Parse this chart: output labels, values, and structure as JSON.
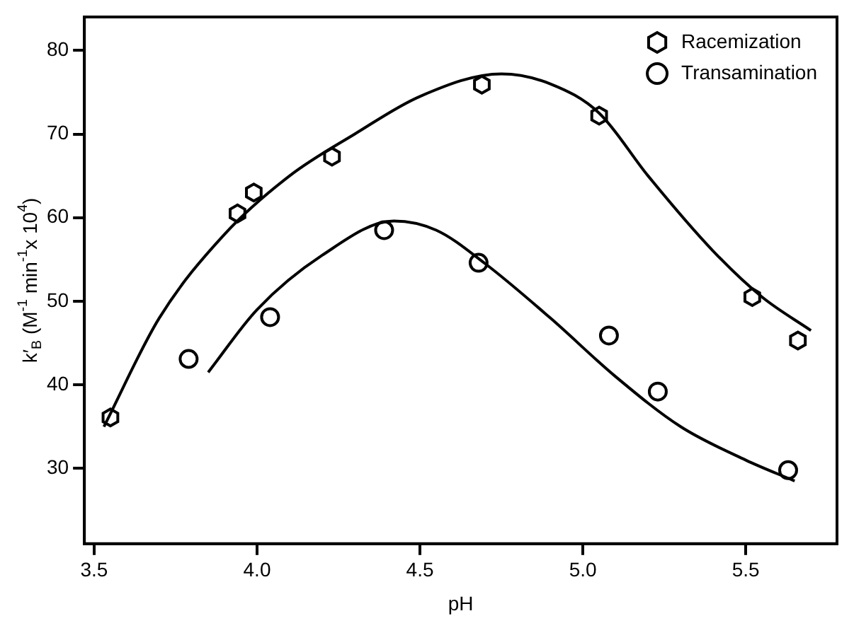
{
  "chart_data": {
    "type": "scatter",
    "xlabel": "pH",
    "ylabel": "k′$_{B}$ (M$^{-1}$ min$^{-1}$x 10$^{4}$)",
    "xlim": [
      3.47,
      5.78
    ],
    "ylim": [
      21,
      84
    ],
    "xticks": [
      {
        "value": 3.5,
        "label": "3.5"
      },
      {
        "value": 4,
        "label": "4.0"
      },
      {
        "value": 4.5,
        "label": "4.5"
      },
      {
        "value": 5,
        "label": "5.0"
      },
      {
        "value": 5.5,
        "label": "5.5"
      }
    ],
    "yticks": [
      30,
      40,
      50,
      60,
      70,
      80
    ],
    "grid": false,
    "legend": "top right",
    "series": [
      {
        "name": "Racemization",
        "color": "#000000",
        "x": [
          3.55,
          3.94,
          3.99,
          4.23,
          4.69,
          5.05,
          5.52,
          5.66
        ],
        "values": [
          36.1,
          60.5,
          63,
          67.3,
          75.9,
          72.2,
          50.5,
          45.3
        ]
      },
      {
        "name": "Transamination",
        "color": "#000000",
        "marker": "circle",
        "x": [
          3.79,
          4.04,
          4.39,
          4.68,
          5.08,
          5.23,
          5.63
        ],
        "values": [
          43.1,
          48.1,
          58.5,
          54.6,
          45.9,
          39.2,
          29.8
        ]
      },
      {
        "type": "line",
        "color": "#000000",
        "marker": "none",
        "x": [
          3.53,
          3.7,
          3.9,
          4.1,
          4.3,
          4.5,
          4.75,
          4.9,
          5.05,
          5.2,
          5.4,
          5.55,
          5.7
        ],
        "values": [
          35,
          48,
          58,
          65,
          70,
          74.5,
          77.2,
          76,
          72.5,
          65,
          56,
          50.5,
          46.5
        ]
      },
      {
        "type": "line",
        "color": "#000000",
        "marker": "none",
        "x": [
          3.85,
          4.0,
          4.2,
          4.42,
          4.55,
          4.7,
          4.9,
          5.1,
          5.3,
          5.5,
          5.65
        ],
        "values": [
          41.5,
          49,
          55.5,
          59.6,
          58.5,
          54.5,
          48,
          41,
          35,
          31,
          28.5
        ]
      }
    ]
  }
}
